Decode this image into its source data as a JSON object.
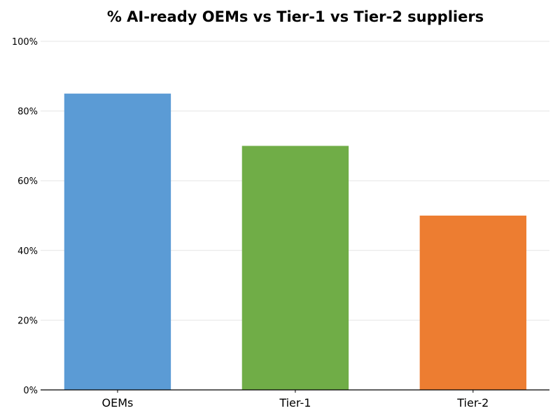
{
  "chart_data": {
    "type": "bar",
    "title": "% AI-ready OEMs vs Tier-1 vs Tier-2 suppliers",
    "xlabel": "",
    "ylabel": "",
    "categories": [
      "OEMs",
      "Tier-1",
      "Tier-2"
    ],
    "values": [
      85,
      70,
      50
    ],
    "colors": [
      "#5B9BD5",
      "#70AD47",
      "#ED7D31"
    ],
    "ylim": [
      0,
      100
    ],
    "yticks": [
      0,
      20,
      40,
      60,
      80,
      100
    ],
    "ytick_labels": [
      "0%",
      "20%",
      "40%",
      "60%",
      "80%",
      "100%"
    ],
    "grid": "horizontal",
    "legend": "none"
  }
}
